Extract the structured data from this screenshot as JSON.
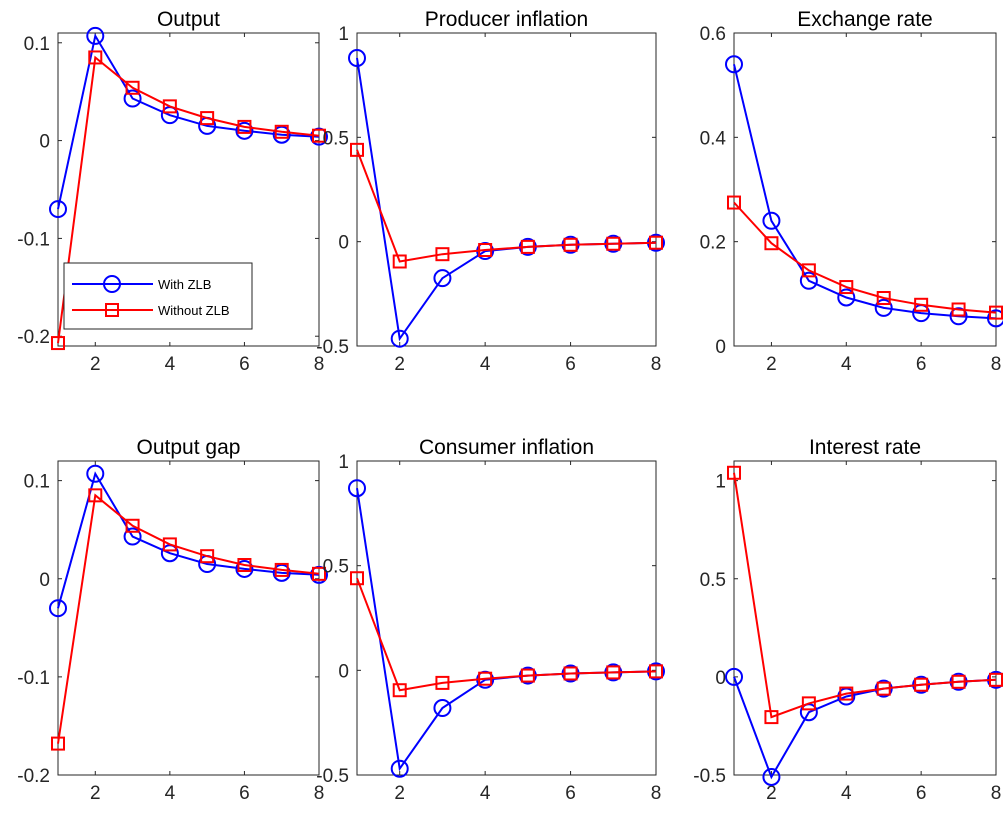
{
  "colors": {
    "with_zlb": "#0000ff",
    "without_zlb": "#ff0000",
    "axis": "#262626"
  },
  "legend": {
    "entries": [
      "With ZLB",
      "Without ZLB"
    ],
    "placement": "lower-right of first panel"
  },
  "chart_data": [
    {
      "type": "line",
      "title": "Output",
      "x": [
        1,
        2,
        3,
        4,
        5,
        6,
        7,
        8
      ],
      "xlim": [
        1,
        8
      ],
      "xticks": [
        2,
        4,
        6,
        8
      ],
      "ylim": [
        -0.21,
        0.11
      ],
      "yticks": [
        -0.2,
        -0.1,
        0,
        0.1
      ],
      "yticklabels": [
        "-0.2",
        "-0.1",
        "0",
        "0.1"
      ],
      "series": [
        {
          "name": "With ZLB",
          "marker": "circle",
          "values": [
            -0.07,
            0.107,
            0.043,
            0.026,
            0.015,
            0.01,
            0.006,
            0.004
          ]
        },
        {
          "name": "Without ZLB",
          "marker": "square",
          "values": [
            -0.207,
            0.085,
            0.054,
            0.035,
            0.023,
            0.014,
            0.009,
            0.005
          ]
        }
      ]
    },
    {
      "type": "line",
      "title": "Producer inflation",
      "x": [
        1,
        2,
        3,
        4,
        5,
        6,
        7,
        8
      ],
      "xlim": [
        1,
        8
      ],
      "xticks": [
        2,
        4,
        6,
        8
      ],
      "ylim": [
        -0.5,
        1.0
      ],
      "yticks": [
        -0.5,
        0,
        0.5,
        1
      ],
      "yticklabels": [
        "-0.5",
        "0",
        "0.5",
        "1"
      ],
      "series": [
        {
          "name": "With ZLB",
          "marker": "circle",
          "values": [
            0.88,
            -0.465,
            -0.175,
            -0.045,
            -0.025,
            -0.015,
            -0.01,
            -0.005
          ]
        },
        {
          "name": "Without ZLB",
          "marker": "square",
          "values": [
            0.44,
            -0.095,
            -0.06,
            -0.04,
            -0.025,
            -0.015,
            -0.01,
            -0.005
          ]
        }
      ]
    },
    {
      "type": "line",
      "title": "Exchange rate",
      "x": [
        1,
        2,
        3,
        4,
        5,
        6,
        7,
        8
      ],
      "xlim": [
        1,
        8
      ],
      "xticks": [
        2,
        4,
        6,
        8
      ],
      "ylim": [
        0,
        0.6
      ],
      "yticks": [
        0,
        0.2,
        0.4,
        0.6
      ],
      "yticklabels": [
        "0",
        "0.2",
        "0.4",
        "0.6"
      ],
      "series": [
        {
          "name": "With ZLB",
          "marker": "circle",
          "values": [
            0.54,
            0.24,
            0.125,
            0.093,
            0.073,
            0.063,
            0.057,
            0.053
          ]
        },
        {
          "name": "Without ZLB",
          "marker": "square",
          "values": [
            0.275,
            0.197,
            0.145,
            0.113,
            0.092,
            0.079,
            0.07,
            0.064
          ]
        }
      ]
    },
    {
      "type": "line",
      "title": "Output gap",
      "x": [
        1,
        2,
        3,
        4,
        5,
        6,
        7,
        8
      ],
      "xlim": [
        1,
        8
      ],
      "xticks": [
        2,
        4,
        6,
        8
      ],
      "ylim": [
        -0.2,
        0.12
      ],
      "yticks": [
        -0.2,
        -0.1,
        0,
        0.1
      ],
      "yticklabels": [
        "-0.2",
        "-0.1",
        "0",
        "0.1"
      ],
      "series": [
        {
          "name": "With ZLB",
          "marker": "circle",
          "values": [
            -0.03,
            0.107,
            0.043,
            0.026,
            0.015,
            0.01,
            0.006,
            0.004
          ]
        },
        {
          "name": "Without ZLB",
          "marker": "square",
          "values": [
            -0.168,
            0.085,
            0.054,
            0.035,
            0.023,
            0.014,
            0.009,
            0.005
          ]
        }
      ]
    },
    {
      "type": "line",
      "title": "Consumer inflation",
      "x": [
        1,
        2,
        3,
        4,
        5,
        6,
        7,
        8
      ],
      "xlim": [
        1,
        8
      ],
      "xticks": [
        2,
        4,
        6,
        8
      ],
      "ylim": [
        -0.5,
        1.0
      ],
      "yticks": [
        -0.5,
        0,
        0.5,
        1
      ],
      "yticklabels": [
        "-0.5",
        "0",
        "0.5",
        "1"
      ],
      "series": [
        {
          "name": "With ZLB",
          "marker": "circle",
          "values": [
            0.87,
            -0.47,
            -0.18,
            -0.045,
            -0.025,
            -0.015,
            -0.01,
            -0.005
          ]
        },
        {
          "name": "Without ZLB",
          "marker": "square",
          "values": [
            0.44,
            -0.095,
            -0.06,
            -0.04,
            -0.025,
            -0.015,
            -0.01,
            -0.005
          ]
        }
      ]
    },
    {
      "type": "line",
      "title": "Interest rate",
      "x": [
        1,
        2,
        3,
        4,
        5,
        6,
        7,
        8
      ],
      "xlim": [
        1,
        8
      ],
      "xticks": [
        2,
        4,
        6,
        8
      ],
      "ylim": [
        -0.5,
        1.1
      ],
      "yticks": [
        -0.5,
        0,
        0.5,
        1
      ],
      "yticklabels": [
        "-0.5",
        "0",
        "0.5",
        "1"
      ],
      "series": [
        {
          "name": "With ZLB",
          "marker": "circle",
          "values": [
            0.0,
            -0.51,
            -0.18,
            -0.1,
            -0.06,
            -0.04,
            -0.025,
            -0.015
          ]
        },
        {
          "name": "Without ZLB",
          "marker": "square",
          "values": [
            1.04,
            -0.205,
            -0.135,
            -0.085,
            -0.06,
            -0.04,
            -0.025,
            -0.015
          ]
        }
      ]
    }
  ]
}
